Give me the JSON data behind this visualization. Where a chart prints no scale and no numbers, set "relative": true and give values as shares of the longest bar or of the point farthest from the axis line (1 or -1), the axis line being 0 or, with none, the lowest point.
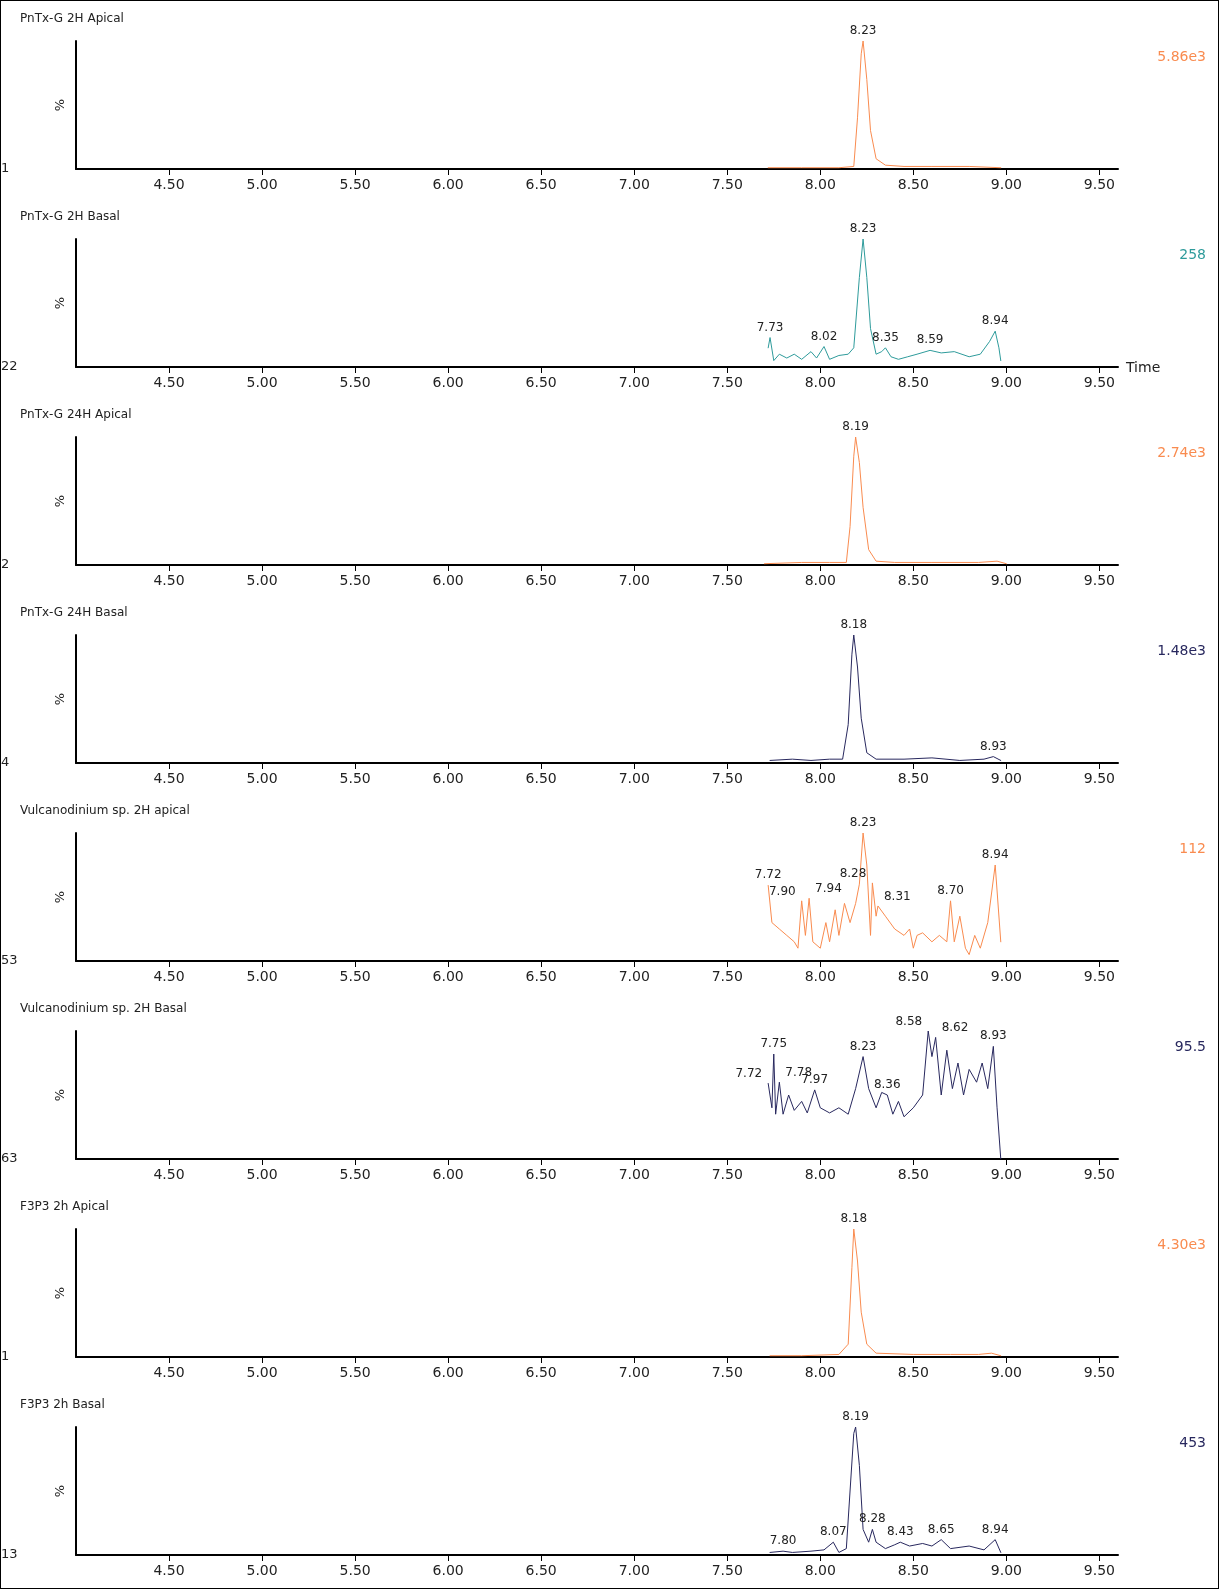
{
  "chart_data": [
    {
      "type": "line",
      "title": "PnTx-G 2H Apical",
      "ylabel": "%",
      "relative": true,
      "marker": "none",
      "color": "#f98b4f",
      "xlim": [
        4.0,
        9.6
      ],
      "xticks": [
        {
          "value": 4.5,
          "label": "4.50"
        },
        {
          "value": 5,
          "label": "5.00"
        },
        {
          "value": 5.5,
          "label": "5.50"
        },
        {
          "value": 6,
          "label": "6.00"
        },
        {
          "value": 6.5,
          "label": "6.50"
        },
        {
          "value": 7,
          "label": "7.00"
        },
        {
          "value": 7.5,
          "label": "7.50"
        },
        {
          "value": 8,
          "label": "8.00"
        },
        {
          "value": 8.5,
          "label": "8.50"
        },
        {
          "value": 9,
          "label": "9.00"
        },
        {
          "value": 9.5,
          "label": "9.50"
        }
      ],
      "x": [
        7.72,
        7.9,
        8.1,
        8.18,
        8.2,
        8.22,
        8.23,
        8.25,
        8.27,
        8.3,
        8.35,
        8.45,
        8.6,
        8.8,
        8.97
      ],
      "values": [
        0.01,
        0.01,
        0.01,
        0.02,
        0.4,
        0.9,
        1,
        0.7,
        0.3,
        0.08,
        0.03,
        0.02,
        0.02,
        0.02,
        0.01
      ],
      "annotations": [
        "5.86e3",
        "1",
        {
          "text": "8.23",
          "x": 8.23,
          "y": 1
        }
      ]
    },
    {
      "type": "line",
      "title": "PnTx-G 2H Basal",
      "ylabel": "%",
      "xlabel": "Time",
      "relative": true,
      "marker": "none",
      "color": "#2e9b9b",
      "xlim": [
        4.0,
        9.6
      ],
      "xticks": [
        {
          "value": 4.5,
          "label": "4.50"
        },
        {
          "value": 5,
          "label": "5.00"
        },
        {
          "value": 5.5,
          "label": "5.50"
        },
        {
          "value": 6,
          "label": "6.00"
        },
        {
          "value": 6.5,
          "label": "6.50"
        },
        {
          "value": 7,
          "label": "7.00"
        },
        {
          "value": 7.5,
          "label": "7.50"
        },
        {
          "value": 8,
          "label": "8.00"
        },
        {
          "value": 8.5,
          "label": "8.50"
        },
        {
          "value": 9,
          "label": "9.00"
        },
        {
          "value": 9.5,
          "label": "9.50"
        }
      ],
      "x": [
        7.72,
        7.73,
        7.75,
        7.78,
        7.82,
        7.86,
        7.9,
        7.95,
        7.98,
        8.02,
        8.05,
        8.1,
        8.15,
        8.18,
        8.21,
        8.23,
        8.25,
        8.27,
        8.3,
        8.33,
        8.35,
        8.38,
        8.42,
        8.47,
        8.52,
        8.59,
        8.65,
        8.72,
        8.8,
        8.86,
        8.91,
        8.94,
        8.96,
        8.97
      ],
      "values": [
        0.15,
        0.23,
        0.05,
        0.1,
        0.07,
        0.1,
        0.06,
        0.12,
        0.07,
        0.16,
        0.06,
        0.09,
        0.1,
        0.15,
        0.7,
        1,
        0.7,
        0.3,
        0.1,
        0.12,
        0.15,
        0.08,
        0.06,
        0.08,
        0.1,
        0.13,
        0.11,
        0.12,
        0.08,
        0.1,
        0.2,
        0.28,
        0.15,
        0.05
      ],
      "annotations": [
        "258",
        "22",
        {
          "text": "7.73",
          "x": 7.73,
          "y": 0.23
        },
        {
          "text": "8.02",
          "x": 8.02,
          "y": 0.16
        },
        {
          "text": "8.23",
          "x": 8.23,
          "y": 1
        },
        {
          "text": "8.35",
          "x": 8.35,
          "y": 0.15
        },
        {
          "text": "8.59",
          "x": 8.59,
          "y": 0.13
        },
        {
          "text": "8.94",
          "x": 8.94,
          "y": 0.28
        }
      ]
    },
    {
      "type": "line",
      "title": "PnTx-G 24H Apical",
      "ylabel": "%",
      "relative": true,
      "marker": "none",
      "color": "#f98b4f",
      "xlim": [
        4.0,
        9.6
      ],
      "xticks": [
        {
          "value": 4.5,
          "label": "4.50"
        },
        {
          "value": 5,
          "label": "5.00"
        },
        {
          "value": 5.5,
          "label": "5.50"
        },
        {
          "value": 6,
          "label": "6.00"
        },
        {
          "value": 6.5,
          "label": "6.50"
        },
        {
          "value": 7,
          "label": "7.00"
        },
        {
          "value": 7.5,
          "label": "7.50"
        },
        {
          "value": 8,
          "label": "8.00"
        },
        {
          "value": 8.5,
          "label": "8.50"
        },
        {
          "value": 9,
          "label": "9.00"
        },
        {
          "value": 9.5,
          "label": "9.50"
        }
      ],
      "x": [
        7.7,
        7.9,
        8.05,
        8.14,
        8.16,
        8.18,
        8.19,
        8.21,
        8.23,
        8.26,
        8.3,
        8.4,
        8.6,
        8.85,
        8.95,
        9.0
      ],
      "values": [
        0.01,
        0.02,
        0.02,
        0.02,
        0.3,
        0.85,
        1,
        0.8,
        0.45,
        0.12,
        0.03,
        0.02,
        0.02,
        0.02,
        0.03,
        0.01
      ],
      "annotations": [
        "2.74e3",
        "2",
        {
          "text": "8.19",
          "x": 8.19,
          "y": 1
        }
      ]
    },
    {
      "type": "line",
      "title": "PnTx-G 24H Basal",
      "ylabel": "%",
      "relative": true,
      "marker": "none",
      "color": "#28285e",
      "xlim": [
        4.0,
        9.6
      ],
      "xticks": [
        {
          "value": 4.5,
          "label": "4.50"
        },
        {
          "value": 5,
          "label": "5.00"
        },
        {
          "value": 5.5,
          "label": "5.50"
        },
        {
          "value": 6,
          "label": "6.00"
        },
        {
          "value": 6.5,
          "label": "6.50"
        },
        {
          "value": 7,
          "label": "7.00"
        },
        {
          "value": 7.5,
          "label": "7.50"
        },
        {
          "value": 8,
          "label": "8.00"
        },
        {
          "value": 8.5,
          "label": "8.50"
        },
        {
          "value": 9,
          "label": "9.00"
        },
        {
          "value": 9.5,
          "label": "9.50"
        }
      ],
      "x": [
        7.73,
        7.85,
        7.95,
        8.05,
        8.12,
        8.15,
        8.17,
        8.18,
        8.2,
        8.22,
        8.25,
        8.3,
        8.45,
        8.6,
        8.75,
        8.88,
        8.93,
        8.97
      ],
      "values": [
        0.02,
        0.03,
        0.02,
        0.03,
        0.03,
        0.3,
        0.85,
        1,
        0.75,
        0.35,
        0.08,
        0.03,
        0.03,
        0.04,
        0.02,
        0.03,
        0.05,
        0.02
      ],
      "annotations": [
        "1.48e3",
        "4",
        {
          "text": "8.18",
          "x": 8.18,
          "y": 1
        },
        {
          "text": "8.93",
          "x": 8.93,
          "y": 0.05
        }
      ]
    },
    {
      "type": "line",
      "title": "Vulcanodinium sp. 2H apical",
      "ylabel": "%",
      "relative": true,
      "marker": "none",
      "color": "#f98b4f",
      "xlim": [
        4.0,
        9.6
      ],
      "xticks": [
        {
          "value": 4.5,
          "label": "4.50"
        },
        {
          "value": 5,
          "label": "5.00"
        },
        {
          "value": 5.5,
          "label": "5.50"
        },
        {
          "value": 6,
          "label": "6.00"
        },
        {
          "value": 6.5,
          "label": "6.50"
        },
        {
          "value": 7,
          "label": "7.00"
        },
        {
          "value": 7.5,
          "label": "7.50"
        },
        {
          "value": 8,
          "label": "8.00"
        },
        {
          "value": 8.5,
          "label": "8.50"
        },
        {
          "value": 9,
          "label": "9.00"
        },
        {
          "value": 9.5,
          "label": "9.50"
        }
      ],
      "x": [
        7.72,
        7.74,
        7.78,
        7.82,
        7.86,
        7.88,
        7.9,
        7.92,
        7.94,
        7.96,
        8.0,
        8.03,
        8.05,
        8.08,
        8.1,
        8.13,
        8.16,
        8.19,
        8.21,
        8.23,
        8.25,
        8.27,
        8.28,
        8.3,
        8.31,
        8.35,
        8.4,
        8.45,
        8.48,
        8.5,
        8.52,
        8.55,
        8.6,
        8.64,
        8.68,
        8.7,
        8.72,
        8.75,
        8.78,
        8.8,
        8.83,
        8.86,
        8.9,
        8.94,
        8.97
      ],
      "values": [
        0.59,
        0.3,
        0.25,
        0.2,
        0.15,
        0.1,
        0.47,
        0.2,
        0.49,
        0.15,
        0.1,
        0.3,
        0.15,
        0.4,
        0.2,
        0.45,
        0.3,
        0.45,
        0.6,
        1,
        0.75,
        0.2,
        0.61,
        0.35,
        0.43,
        0.35,
        0.25,
        0.2,
        0.25,
        0.1,
        0.2,
        0.22,
        0.15,
        0.2,
        0.15,
        0.47,
        0.15,
        0.35,
        0.1,
        0.05,
        0.2,
        0.1,
        0.3,
        0.75,
        0.15
      ],
      "annotations": [
        "112",
        "53",
        {
          "text": "7.72",
          "x": 7.72,
          "y": 0.59
        },
        {
          "text": "7.90",
          "x": 7.9,
          "y": 0.47
        },
        {
          "text": "7.94",
          "x": 7.94,
          "y": 0.49
        },
        {
          "text": "8.23",
          "x": 8.23,
          "y": 1
        },
        {
          "text": "8.28",
          "x": 8.28,
          "y": 0.61
        },
        {
          "text": "8.31",
          "x": 8.31,
          "y": 0.43
        },
        {
          "text": "8.70",
          "x": 8.7,
          "y": 0.47
        },
        {
          "text": "8.94",
          "x": 8.94,
          "y": 0.75
        }
      ]
    },
    {
      "type": "line",
      "title": "Vulcanodinium sp. 2H Basal",
      "ylabel": "%",
      "relative": true,
      "marker": "none",
      "color": "#28285e",
      "xlim": [
        4.0,
        9.6
      ],
      "xticks": [
        {
          "value": 4.5,
          "label": "4.50"
        },
        {
          "value": 5,
          "label": "5.00"
        },
        {
          "value": 5.5,
          "label": "5.50"
        },
        {
          "value": 6,
          "label": "6.00"
        },
        {
          "value": 6.5,
          "label": "6.50"
        },
        {
          "value": 7,
          "label": "7.00"
        },
        {
          "value": 7.5,
          "label": "7.50"
        },
        {
          "value": 8,
          "label": "8.00"
        },
        {
          "value": 8.5,
          "label": "8.50"
        },
        {
          "value": 9,
          "label": "9.00"
        },
        {
          "value": 9.5,
          "label": "9.50"
        }
      ],
      "x": [
        7.72,
        7.74,
        7.75,
        7.76,
        7.78,
        7.8,
        7.83,
        7.86,
        7.9,
        7.93,
        7.97,
        8.0,
        8.05,
        8.1,
        8.15,
        8.19,
        8.23,
        8.26,
        8.3,
        8.33,
        8.36,
        8.39,
        8.42,
        8.45,
        8.5,
        8.55,
        8.58,
        8.6,
        8.62,
        8.65,
        8.68,
        8.71,
        8.74,
        8.77,
        8.8,
        8.84,
        8.87,
        8.9,
        8.93,
        8.95,
        8.97
      ],
      "values": [
        0.59,
        0.4,
        0.82,
        0.35,
        0.6,
        0.35,
        0.5,
        0.38,
        0.45,
        0.36,
        0.54,
        0.4,
        0.36,
        0.4,
        0.35,
        0.55,
        0.8,
        0.55,
        0.4,
        0.52,
        0.5,
        0.35,
        0.45,
        0.33,
        0.4,
        0.5,
        1,
        0.8,
        0.95,
        0.5,
        0.85,
        0.55,
        0.75,
        0.5,
        0.7,
        0.6,
        0.75,
        0.55,
        0.88,
        0.4,
        0.0
      ],
      "annotations": [
        "95.5",
        "63",
        {
          "text": "7.72",
          "x": 7.72,
          "y": 0.59
        },
        {
          "text": "7.75",
          "x": 7.75,
          "y": 0.82
        },
        {
          "text": "7.78",
          "x": 7.78,
          "y": 0.6
        },
        {
          "text": "7.97",
          "x": 7.97,
          "y": 0.54
        },
        {
          "text": "8.23",
          "x": 8.23,
          "y": 0.8
        },
        {
          "text": "8.36",
          "x": 8.36,
          "y": 0.5
        },
        {
          "text": "8.58",
          "x": 8.58,
          "y": 1
        },
        {
          "text": "8.62",
          "x": 8.62,
          "y": 0.95
        },
        {
          "text": "8.93",
          "x": 8.93,
          "y": 0.88
        }
      ]
    },
    {
      "type": "line",
      "title": "F3P3 2h Apical",
      "ylabel": "%",
      "relative": true,
      "marker": "none",
      "color": "#f98b4f",
      "xlim": [
        4.0,
        9.6
      ],
      "xticks": [
        {
          "value": 4.5,
          "label": "4.50"
        },
        {
          "value": 5,
          "label": "5.00"
        },
        {
          "value": 5.5,
          "label": "5.50"
        },
        {
          "value": 6,
          "label": "6.00"
        },
        {
          "value": 6.5,
          "label": "6.50"
        },
        {
          "value": 7,
          "label": "7.00"
        },
        {
          "value": 7.5,
          "label": "7.50"
        },
        {
          "value": 8,
          "label": "8.00"
        },
        {
          "value": 8.5,
          "label": "8.50"
        },
        {
          "value": 9,
          "label": "9.00"
        },
        {
          "value": 9.5,
          "label": "9.50"
        }
      ],
      "x": [
        7.73,
        7.9,
        8.1,
        8.15,
        8.17,
        8.18,
        8.2,
        8.22,
        8.25,
        8.3,
        8.5,
        8.7,
        8.85,
        8.92,
        8.97
      ],
      "values": [
        0.01,
        0.01,
        0.02,
        0.1,
        0.7,
        1,
        0.75,
        0.35,
        0.1,
        0.03,
        0.02,
        0.02,
        0.02,
        0.03,
        0.01
      ],
      "annotations": [
        "4.30e3",
        "1",
        {
          "text": "8.18",
          "x": 8.18,
          "y": 1
        }
      ]
    },
    {
      "type": "line",
      "title": "F3P3 2h Basal",
      "ylabel": "%",
      "relative": true,
      "marker": "none",
      "color": "#28285e",
      "xlim": [
        4.0,
        9.6
      ],
      "xticks": [
        {
          "value": 4.5,
          "label": "4.50"
        },
        {
          "value": 5,
          "label": "5.00"
        },
        {
          "value": 5.5,
          "label": "5.50"
        },
        {
          "value": 6,
          "label": "6.00"
        },
        {
          "value": 6.5,
          "label": "6.50"
        },
        {
          "value": 7,
          "label": "7.00"
        },
        {
          "value": 7.5,
          "label": "7.50"
        },
        {
          "value": 8,
          "label": "8.00"
        },
        {
          "value": 8.5,
          "label": "8.50"
        },
        {
          "value": 9,
          "label": "9.00"
        },
        {
          "value": 9.5,
          "label": "9.50"
        }
      ],
      "x": [
        7.73,
        7.8,
        7.85,
        7.95,
        8.02,
        8.07,
        8.1,
        8.14,
        8.16,
        8.18,
        8.19,
        8.21,
        8.23,
        8.26,
        8.28,
        8.3,
        8.35,
        8.4,
        8.43,
        8.48,
        8.55,
        8.6,
        8.65,
        8.7,
        8.8,
        8.88,
        8.94,
        8.97
      ],
      "values": [
        0.02,
        0.03,
        0.02,
        0.03,
        0.04,
        0.1,
        0.02,
        0.05,
        0.5,
        0.95,
        1,
        0.7,
        0.2,
        0.1,
        0.2,
        0.1,
        0.05,
        0.08,
        0.1,
        0.07,
        0.09,
        0.07,
        0.12,
        0.05,
        0.07,
        0.04,
        0.12,
        0.02
      ],
      "annotations": [
        "453",
        "13",
        {
          "text": "7.80",
          "x": 7.8,
          "y": 0.03
        },
        {
          "text": "8.07",
          "x": 8.07,
          "y": 0.1
        },
        {
          "text": "8.19",
          "x": 8.19,
          "y": 1
        },
        {
          "text": "8.28",
          "x": 8.28,
          "y": 0.2
        },
        {
          "text": "8.43",
          "x": 8.43,
          "y": 0.1
        },
        {
          "text": "8.65",
          "x": 8.65,
          "y": 0.12
        },
        {
          "text": "8.94",
          "x": 8.94,
          "y": 0.12
        }
      ]
    }
  ]
}
